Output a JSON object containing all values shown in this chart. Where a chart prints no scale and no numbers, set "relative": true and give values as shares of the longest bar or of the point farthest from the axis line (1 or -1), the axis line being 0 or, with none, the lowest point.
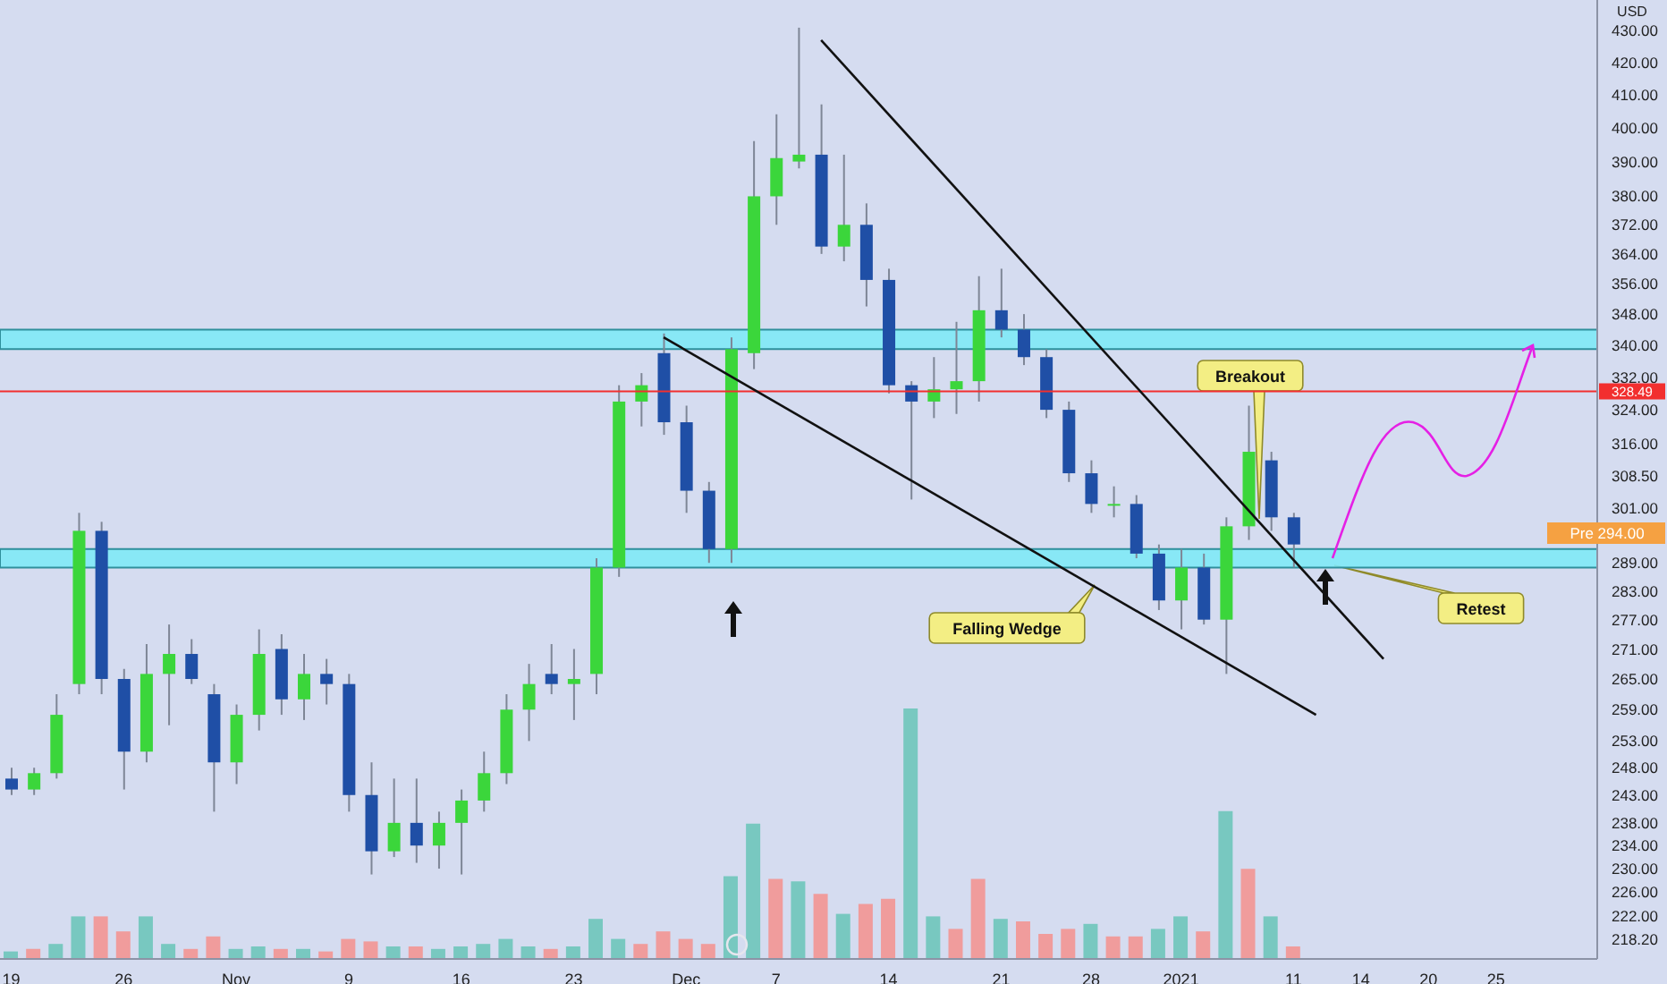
{
  "chart_data": [
    {
      "type": "candlestick",
      "ylabel": "USD",
      "log": true,
      "categories": [
        "19",
        null,
        null,
        null,
        null,
        "26",
        null,
        null,
        null,
        null,
        "Nov",
        null,
        null,
        null,
        null,
        "9",
        null,
        null,
        null,
        null,
        "16",
        null,
        null,
        null,
        null,
        "23",
        null,
        null,
        null,
        null,
        "Dec",
        null,
        null,
        null,
        "7",
        null,
        null,
        null,
        null,
        "14",
        null,
        null,
        null,
        null,
        "21",
        null,
        null,
        null,
        "28",
        null,
        null,
        null,
        "2021",
        null,
        null,
        null,
        null,
        "11",
        null,
        null,
        "14",
        null,
        null,
        "20",
        null,
        null,
        "25",
        null,
        null,
        null,
        null
      ],
      "ohlc": [
        [
          246,
          248,
          243,
          244
        ],
        [
          244,
          248,
          243,
          247
        ],
        [
          247,
          262,
          246,
          258
        ],
        [
          264,
          300,
          262,
          296
        ],
        [
          296,
          298,
          262,
          265
        ],
        [
          265,
          267,
          244,
          251
        ],
        [
          251,
          272,
          249,
          266
        ],
        [
          266,
          276,
          256,
          270
        ],
        [
          270,
          273,
          264,
          265
        ],
        [
          262,
          264,
          240,
          249
        ],
        [
          249,
          260,
          245,
          258
        ],
        [
          258,
          275,
          255,
          270
        ],
        [
          271,
          274,
          258,
          261
        ],
        [
          261,
          270,
          257,
          266
        ],
        [
          266,
          269,
          260,
          264
        ],
        [
          264,
          266,
          240,
          243
        ],
        [
          243,
          249,
          229,
          233
        ],
        [
          233,
          246,
          232,
          238
        ],
        [
          238,
          246,
          231,
          234
        ],
        [
          234,
          240,
          230,
          238
        ],
        [
          238,
          244,
          229,
          242
        ],
        [
          242,
          251,
          240,
          247
        ],
        [
          247,
          262,
          245,
          259
        ],
        [
          259,
          268,
          253,
          264
        ],
        [
          266,
          272,
          262,
          264
        ],
        [
          264,
          271,
          257,
          265
        ],
        [
          266,
          290,
          262,
          288
        ],
        [
          288,
          330,
          286,
          326
        ],
        [
          326,
          333,
          320,
          330
        ],
        [
          338,
          343,
          318,
          321
        ],
        [
          321,
          325,
          300,
          305
        ],
        [
          305,
          307,
          289,
          292
        ],
        [
          292,
          342,
          289,
          339
        ],
        [
          338,
          396,
          334,
          380
        ],
        [
          380,
          404,
          372,
          391
        ],
        [
          390,
          431,
          388,
          392
        ],
        [
          392,
          407,
          364,
          366
        ],
        [
          366,
          392,
          362,
          372
        ],
        [
          372,
          378,
          350,
          357
        ],
        [
          357,
          360,
          328,
          330
        ],
        [
          330,
          331,
          303,
          326
        ],
        [
          326,
          337,
          322,
          329
        ],
        [
          329,
          346,
          323,
          331
        ],
        [
          331,
          358,
          326,
          349
        ],
        [
          349,
          360,
          342,
          344
        ],
        [
          344,
          348,
          335,
          337
        ],
        [
          337,
          339,
          322,
          324
        ],
        [
          324,
          326,
          307,
          309
        ],
        [
          309,
          312,
          300,
          302
        ],
        [
          302,
          306,
          299,
          302
        ],
        [
          302,
          304,
          290,
          291
        ],
        [
          291,
          293,
          279,
          281
        ],
        [
          281,
          292,
          275,
          288
        ],
        [
          288,
          291,
          276,
          277
        ],
        [
          277,
          299,
          266,
          297
        ],
        [
          297,
          325,
          294,
          314
        ],
        [
          312,
          314,
          296,
          299
        ],
        [
          299,
          300,
          288,
          293
        ],
        null,
        null,
        null,
        null,
        null,
        null,
        null,
        null,
        null,
        null,
        null,
        null,
        null
      ],
      "colors": [
        "#1f4fa6",
        "#3bd63b",
        "#3bd63b",
        "#3bd63b",
        "#1f4fa6",
        "#1f4fa6",
        "#3bd63b",
        "#3bd63b",
        "#1f4fa6",
        "#1f4fa6",
        "#3bd63b",
        "#3bd63b",
        "#1f4fa6",
        "#3bd63b",
        "#1f4fa6",
        "#1f4fa6",
        "#1f4fa6",
        "#3bd63b",
        "#1f4fa6",
        "#3bd63b",
        "#3bd63b",
        "#3bd63b",
        "#3bd63b",
        "#3bd63b",
        "#1f4fa6",
        "#3bd63b",
        "#3bd63b",
        "#3bd63b",
        "#3bd63b",
        "#1f4fa6",
        "#1f4fa6",
        "#1f4fa6",
        "#3bd63b",
        "#3bd63b",
        "#3bd63b",
        "#3bd63b",
        "#1f4fa6",
        "#3bd63b",
        "#1f4fa6",
        "#1f4fa6",
        "#1f4fa6",
        "#3bd63b",
        "#3bd63b",
        "#3bd63b",
        "#1f4fa6",
        "#1f4fa6",
        "#1f4fa6",
        "#1f4fa6",
        "#1f4fa6",
        "#3bd63b",
        "#1f4fa6",
        "#1f4fa6",
        "#3bd63b",
        "#1f4fa6",
        "#3bd63b",
        "#3bd63b",
        "#1f4fa6",
        "#1f4fa6",
        null,
        null,
        null,
        null,
        null,
        null,
        null,
        null,
        null,
        null,
        null,
        null,
        null
      ],
      "series": [
        {
          "type": "line",
          "color": "#111111",
          "values": [
            null,
            null,
            null,
            null,
            null,
            null,
            null,
            null,
            null,
            null,
            null,
            null,
            null,
            null,
            null,
            null,
            null,
            null,
            null,
            null,
            null,
            null,
            null,
            null,
            null,
            null,
            null,
            null,
            null,
            null,
            null,
            null,
            null,
            null,
            null,
            null,
            427,
            null,
            null,
            null,
            null,
            null,
            null,
            null,
            null,
            null,
            null,
            null,
            null,
            null,
            null,
            null,
            null,
            null,
            null,
            null,
            null,
            null,
            null,
            null,
            null,
            269,
            null,
            null,
            null,
            null,
            null,
            null,
            null,
            null,
            null
          ]
        },
        {
          "type": "line",
          "color": "#111111",
          "values": [
            null,
            null,
            null,
            null,
            null,
            null,
            null,
            null,
            null,
            null,
            null,
            null,
            null,
            null,
            null,
            null,
            null,
            null,
            null,
            null,
            null,
            null,
            null,
            null,
            null,
            null,
            null,
            null,
            null,
            342,
            null,
            null,
            null,
            null,
            null,
            null,
            null,
            null,
            null,
            null,
            null,
            null,
            null,
            null,
            null,
            null,
            null,
            null,
            null,
            null,
            null,
            null,
            null,
            null,
            null,
            null,
            null,
            null,
            258,
            null,
            null,
            null,
            null,
            null,
            null,
            null,
            null,
            null,
            null,
            null,
            null
          ]
        }
      ],
      "ylim": [
        215,
        440
      ],
      "yticks": [
        {
          "value": 430,
          "label": "430.00"
        },
        {
          "value": 420,
          "label": "420.00"
        },
        {
          "value": 410,
          "label": "410.00"
        },
        {
          "value": 400,
          "label": "400.00"
        },
        {
          "value": 390,
          "label": "390.00"
        },
        {
          "value": 380,
          "label": "380.00"
        },
        {
          "value": 372,
          "label": "372.00"
        },
        {
          "value": 364,
          "label": "364.00"
        },
        {
          "value": 356,
          "label": "356.00"
        },
        {
          "value": 348,
          "label": "348.00"
        },
        {
          "value": 340,
          "label": "340.00"
        },
        {
          "value": 332,
          "label": "332.00"
        },
        {
          "value": 324,
          "label": "324.00"
        },
        {
          "value": 316,
          "label": "316.00"
        },
        {
          "value": 308.5,
          "label": "308.50"
        },
        {
          "value": 301,
          "label": "301.00"
        },
        {
          "value": 289,
          "label": "289.00"
        },
        {
          "value": 283,
          "label": "283.00"
        },
        {
          "value": 277,
          "label": "277.00"
        },
        {
          "value": 271,
          "label": "271.00"
        },
        {
          "value": 265,
          "label": "265.00"
        },
        {
          "value": 259,
          "label": "259.00"
        },
        {
          "value": 253,
          "label": "253.00"
        },
        {
          "value": 248,
          "label": "248.00"
        },
        {
          "value": 243,
          "label": "243.00"
        },
        {
          "value": 238,
          "label": "238.00"
        },
        {
          "value": 234,
          "label": "234.00"
        },
        {
          "value": 230,
          "label": "230.00"
        },
        {
          "value": 226,
          "label": "226.00"
        },
        {
          "value": 222,
          "label": "222.00"
        },
        {
          "value": 218.2,
          "label": "218.20"
        }
      ],
      "bands": [
        {
          "axis": "y",
          "from": 339,
          "to": 344,
          "color": "#80e9f6"
        },
        {
          "axis": "y",
          "from": 288,
          "to": 292,
          "color": "#80e9f6"
        }
      ],
      "ref_lines": [
        {
          "axis": "y",
          "value": 328.49,
          "label": "328.49",
          "color": "#f22f2f"
        }
      ],
      "annotations": [
        "Breakout",
        "Falling Wedge",
        "Retest",
        "Pre 294.00"
      ]
    },
    {
      "type": "bar",
      "relative": true,
      "categories": [
        null,
        null,
        null,
        null,
        null,
        null,
        null,
        null,
        null,
        null,
        null,
        null,
        null,
        null,
        null,
        null,
        null,
        null,
        null,
        null,
        null,
        null,
        null,
        null,
        null,
        null,
        null,
        null,
        null,
        null,
        null,
        null,
        null,
        null,
        null,
        null,
        null,
        null,
        null,
        null,
        null,
        null,
        null,
        null,
        null,
        null,
        null,
        null,
        null,
        null,
        null,
        null,
        null,
        null,
        null,
        null,
        null,
        null,
        null,
        null,
        null,
        null,
        null,
        null,
        null,
        null,
        null,
        null,
        null,
        null,
        null
      ],
      "values": [
        0.03,
        0.04,
        0.06,
        0.17,
        0.17,
        0.11,
        0.17,
        0.06,
        0.04,
        0.09,
        0.04,
        0.05,
        0.04,
        0.04,
        0.03,
        0.08,
        0.07,
        0.05,
        0.05,
        0.04,
        0.05,
        0.06,
        0.08,
        0.05,
        0.04,
        0.05,
        0.16,
        0.08,
        0.06,
        0.11,
        0.08,
        0.06,
        0.33,
        0.54,
        0.32,
        0.31,
        0.26,
        0.18,
        0.22,
        0.24,
        1,
        0.17,
        0.12,
        0.32,
        0.16,
        0.15,
        0.1,
        0.12,
        0.14,
        0.09,
        0.09,
        0.12,
        0.17,
        0.11,
        0.59,
        0.36,
        0.17,
        0.05,
        null,
        null,
        null,
        null,
        null,
        null,
        null,
        null,
        null,
        null,
        null,
        null,
        null
      ],
      "colors": [
        "#78c8c0",
        "#f09c9c",
        "#78c8c0",
        "#78c8c0",
        "#f09c9c",
        "#f09c9c",
        "#78c8c0",
        "#78c8c0",
        "#f09c9c",
        "#f09c9c",
        "#78c8c0",
        "#78c8c0",
        "#f09c9c",
        "#78c8c0",
        "#f09c9c",
        "#f09c9c",
        "#f09c9c",
        "#78c8c0",
        "#f09c9c",
        "#78c8c0",
        "#78c8c0",
        "#78c8c0",
        "#78c8c0",
        "#78c8c0",
        "#f09c9c",
        "#78c8c0",
        "#78c8c0",
        "#78c8c0",
        "#f09c9c",
        "#f09c9c",
        "#f09c9c",
        "#f09c9c",
        "#78c8c0",
        "#78c8c0",
        "#f09c9c",
        "#78c8c0",
        "#f09c9c",
        "#78c8c0",
        "#f09c9c",
        "#f09c9c",
        "#78c8c0",
        "#78c8c0",
        "#f09c9c",
        "#f09c9c",
        "#78c8c0",
        "#f09c9c",
        "#f09c9c",
        "#f09c9c",
        "#78c8c0",
        "#f09c9c",
        "#f09c9c",
        "#78c8c0",
        "#78c8c0",
        "#f09c9c",
        "#78c8c0",
        "#f09c9c",
        "#78c8c0",
        "#f09c9c",
        null,
        null,
        null,
        null,
        null,
        null,
        null,
        null,
        null,
        null,
        null,
        null,
        null
      ]
    }
  ]
}
